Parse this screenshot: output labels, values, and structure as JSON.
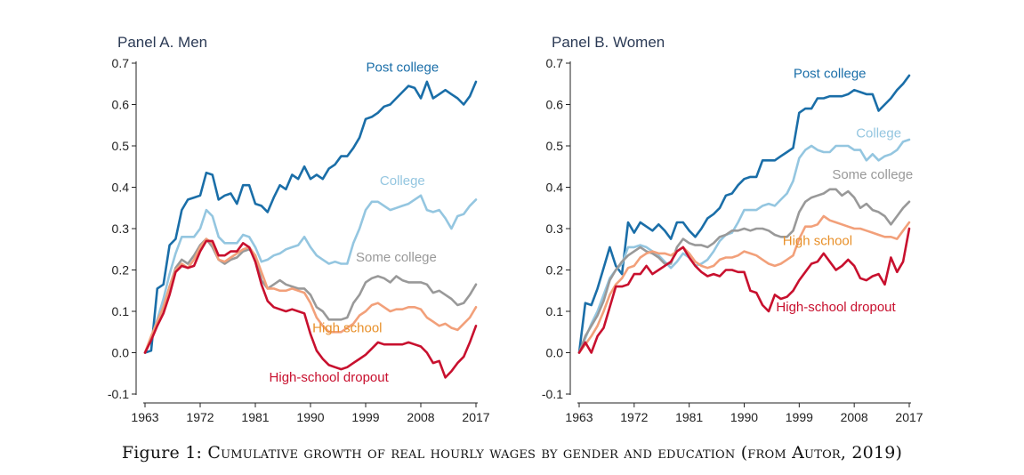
{
  "caption": {
    "label": "Figure 1:",
    "text": "Cumulative growth of real hourly wages by gender and education (from Autor, 2019)"
  },
  "colors": {
    "post_college": "#1a6ea8",
    "college": "#94c6e0",
    "some_college": "#999999",
    "high_school": "#f2a07a",
    "dropout": "#c8102e",
    "high_school_label": "#e8902a",
    "title": "#2b3a55"
  },
  "chart_data": [
    {
      "type": "line",
      "title": "Panel A. Men",
      "xlim": [
        1963,
        2017
      ],
      "ylim": [
        -0.1,
        0.7
      ],
      "xticks": [
        "1963",
        "1972",
        "1981",
        "1990",
        "1999",
        "2008",
        "2017"
      ],
      "yticks": [
        "-0.1",
        "0.0",
        "0.1",
        "0.2",
        "0.3",
        "0.4",
        "0.5",
        "0.6",
        "0.7"
      ],
      "x": [
        1963,
        1964,
        1965,
        1966,
        1967,
        1968,
        1969,
        1970,
        1971,
        1972,
        1973,
        1974,
        1975,
        1976,
        1977,
        1978,
        1979,
        1980,
        1981,
        1982,
        1983,
        1984,
        1985,
        1986,
        1987,
        1988,
        1989,
        1990,
        1991,
        1992,
        1993,
        1994,
        1995,
        1996,
        1997,
        1998,
        1999,
        2000,
        2001,
        2002,
        2003,
        2004,
        2005,
        2006,
        2007,
        2008,
        2009,
        2010,
        2011,
        2012,
        2013,
        2014,
        2015,
        2016,
        2017
      ],
      "series": [
        {
          "name": "Post college",
          "color_key": "post_college",
          "label_at": [
            2005,
            0.68
          ],
          "values": [
            0.0,
            0.005,
            0.155,
            0.165,
            0.26,
            0.275,
            0.345,
            0.37,
            0.375,
            0.38,
            0.435,
            0.43,
            0.37,
            0.38,
            0.385,
            0.36,
            0.405,
            0.405,
            0.36,
            0.355,
            0.34,
            0.375,
            0.405,
            0.395,
            0.43,
            0.42,
            0.45,
            0.42,
            0.43,
            0.42,
            0.445,
            0.455,
            0.475,
            0.475,
            0.495,
            0.52,
            0.565,
            0.57,
            0.58,
            0.595,
            0.6,
            0.615,
            0.63,
            0.645,
            0.64,
            0.615,
            0.655,
            0.615,
            0.625,
            0.635,
            0.625,
            0.615,
            0.6,
            0.62,
            0.655
          ]
        },
        {
          "name": "College",
          "color_key": "college",
          "label_at": [
            2005,
            0.405
          ],
          "values": [
            0.0,
            0.035,
            0.08,
            0.13,
            0.19,
            0.24,
            0.28,
            0.28,
            0.28,
            0.3,
            0.345,
            0.33,
            0.28,
            0.265,
            0.265,
            0.265,
            0.285,
            0.28,
            0.255,
            0.22,
            0.225,
            0.235,
            0.24,
            0.25,
            0.255,
            0.26,
            0.28,
            0.255,
            0.235,
            0.225,
            0.215,
            0.22,
            0.215,
            0.215,
            0.265,
            0.3,
            0.345,
            0.365,
            0.365,
            0.355,
            0.345,
            0.35,
            0.355,
            0.36,
            0.37,
            0.38,
            0.345,
            0.34,
            0.345,
            0.325,
            0.3,
            0.33,
            0.335,
            0.355,
            0.37
          ]
        },
        {
          "name": "Some college",
          "color_key": "some_college",
          "label_at": [
            2004,
            0.22
          ],
          "values": [
            0.0,
            0.035,
            0.07,
            0.11,
            0.16,
            0.205,
            0.225,
            0.215,
            0.235,
            0.26,
            0.275,
            0.255,
            0.225,
            0.215,
            0.225,
            0.23,
            0.245,
            0.25,
            0.235,
            0.175,
            0.155,
            0.165,
            0.175,
            0.165,
            0.16,
            0.155,
            0.155,
            0.14,
            0.11,
            0.1,
            0.08,
            0.08,
            0.08,
            0.085,
            0.12,
            0.14,
            0.17,
            0.18,
            0.185,
            0.18,
            0.17,
            0.185,
            0.175,
            0.17,
            0.17,
            0.17,
            0.165,
            0.145,
            0.15,
            0.14,
            0.13,
            0.115,
            0.12,
            0.14,
            0.165
          ]
        },
        {
          "name": "High school",
          "color_key": "high_school",
          "label_color_key": "high_school_label",
          "label_at": [
            1996,
            0.05
          ],
          "values": [
            0.0,
            0.04,
            0.075,
            0.11,
            0.16,
            0.2,
            0.215,
            0.205,
            0.225,
            0.255,
            0.275,
            0.265,
            0.225,
            0.22,
            0.23,
            0.24,
            0.25,
            0.255,
            0.235,
            0.195,
            0.155,
            0.155,
            0.15,
            0.15,
            0.155,
            0.15,
            0.145,
            0.12,
            0.085,
            0.065,
            0.05,
            0.05,
            0.05,
            0.06,
            0.07,
            0.09,
            0.1,
            0.115,
            0.12,
            0.11,
            0.1,
            0.105,
            0.105,
            0.11,
            0.11,
            0.105,
            0.085,
            0.075,
            0.065,
            0.07,
            0.06,
            0.055,
            0.07,
            0.085,
            0.11
          ]
        },
        {
          "name": "High-school dropout",
          "color_key": "dropout",
          "label_at": [
            1993,
            -0.07
          ],
          "values": [
            0.0,
            0.03,
            0.065,
            0.095,
            0.14,
            0.195,
            0.21,
            0.205,
            0.21,
            0.245,
            0.27,
            0.27,
            0.235,
            0.235,
            0.245,
            0.245,
            0.265,
            0.255,
            0.22,
            0.165,
            0.125,
            0.11,
            0.105,
            0.1,
            0.105,
            0.1,
            0.095,
            0.045,
            0.005,
            -0.015,
            -0.03,
            -0.035,
            -0.04,
            -0.035,
            -0.025,
            -0.015,
            -0.005,
            0.01,
            0.025,
            0.02,
            0.02,
            0.02,
            0.02,
            0.025,
            0.02,
            0.015,
            0.0,
            -0.025,
            -0.02,
            -0.06,
            -0.045,
            -0.025,
            -0.01,
            0.025,
            0.065
          ]
        }
      ]
    },
    {
      "type": "line",
      "title": "Panel B. Women",
      "xlim": [
        1963,
        2017
      ],
      "ylim": [
        -0.1,
        0.7
      ],
      "xticks": [
        "1963",
        "1972",
        "1981",
        "1990",
        "1999",
        "2008",
        "2017"
      ],
      "yticks": [
        "-0.1",
        "0.0",
        "0.1",
        "0.2",
        "0.3",
        "0.4",
        "0.5",
        "0.6",
        "0.7"
      ],
      "x": [
        1963,
        1964,
        1965,
        1966,
        1967,
        1968,
        1969,
        1970,
        1971,
        1972,
        1973,
        1974,
        1975,
        1976,
        1977,
        1978,
        1979,
        1980,
        1981,
        1982,
        1983,
        1984,
        1985,
        1986,
        1987,
        1988,
        1989,
        1990,
        1991,
        1992,
        1993,
        1994,
        1995,
        1996,
        1997,
        1998,
        1999,
        2000,
        2001,
        2002,
        2003,
        2004,
        2005,
        2006,
        2007,
        2008,
        2009,
        2010,
        2011,
        2012,
        2013,
        2014,
        2015,
        2016,
        2017
      ],
      "series": [
        {
          "name": "Post college",
          "color_key": "post_college",
          "label_at": [
            2004,
            0.665
          ],
          "values": [
            0.0,
            0.12,
            0.115,
            0.155,
            0.205,
            0.255,
            0.21,
            0.19,
            0.315,
            0.29,
            0.315,
            0.305,
            0.295,
            0.31,
            0.295,
            0.275,
            0.315,
            0.315,
            0.295,
            0.28,
            0.3,
            0.325,
            0.335,
            0.35,
            0.38,
            0.385,
            0.405,
            0.42,
            0.425,
            0.425,
            0.465,
            0.465,
            0.465,
            0.475,
            0.485,
            0.495,
            0.58,
            0.59,
            0.59,
            0.615,
            0.615,
            0.62,
            0.62,
            0.62,
            0.625,
            0.635,
            0.63,
            0.625,
            0.625,
            0.585,
            0.6,
            0.615,
            0.635,
            0.65,
            0.67
          ]
        },
        {
          "name": "College",
          "color_key": "college",
          "label_at": [
            2012,
            0.52
          ],
          "values": [
            0.0,
            0.035,
            0.07,
            0.1,
            0.14,
            0.18,
            0.2,
            0.215,
            0.255,
            0.255,
            0.26,
            0.255,
            0.245,
            0.235,
            0.22,
            0.205,
            0.22,
            0.24,
            0.23,
            0.21,
            0.215,
            0.225,
            0.245,
            0.27,
            0.285,
            0.29,
            0.315,
            0.345,
            0.345,
            0.345,
            0.355,
            0.36,
            0.355,
            0.37,
            0.385,
            0.415,
            0.47,
            0.49,
            0.5,
            0.49,
            0.485,
            0.485,
            0.5,
            0.5,
            0.5,
            0.49,
            0.49,
            0.465,
            0.48,
            0.465,
            0.475,
            0.48,
            0.49,
            0.51,
            0.515
          ]
        },
        {
          "name": "Some college",
          "color_key": "some_college",
          "label_at": [
            2011,
            0.42
          ],
          "values": [
            0.0,
            0.04,
            0.065,
            0.09,
            0.125,
            0.175,
            0.2,
            0.22,
            0.235,
            0.245,
            0.255,
            0.245,
            0.24,
            0.23,
            0.215,
            0.215,
            0.255,
            0.275,
            0.265,
            0.26,
            0.26,
            0.255,
            0.265,
            0.28,
            0.285,
            0.295,
            0.295,
            0.3,
            0.295,
            0.3,
            0.3,
            0.295,
            0.285,
            0.28,
            0.28,
            0.295,
            0.34,
            0.365,
            0.375,
            0.38,
            0.385,
            0.395,
            0.395,
            0.38,
            0.39,
            0.375,
            0.35,
            0.36,
            0.345,
            0.34,
            0.33,
            0.31,
            0.33,
            0.35,
            0.365
          ]
        },
        {
          "name": "High school",
          "color_key": "high_school",
          "label_color_key": "high_school_label",
          "label_at": [
            2002,
            0.26
          ],
          "values": [
            0.0,
            0.02,
            0.04,
            0.065,
            0.1,
            0.14,
            0.165,
            0.18,
            0.205,
            0.21,
            0.23,
            0.24,
            0.245,
            0.24,
            0.24,
            0.235,
            0.245,
            0.255,
            0.24,
            0.22,
            0.21,
            0.205,
            0.21,
            0.225,
            0.23,
            0.23,
            0.235,
            0.245,
            0.24,
            0.235,
            0.225,
            0.215,
            0.21,
            0.215,
            0.225,
            0.235,
            0.275,
            0.305,
            0.305,
            0.31,
            0.33,
            0.32,
            0.315,
            0.31,
            0.305,
            0.3,
            0.3,
            0.295,
            0.29,
            0.285,
            0.28,
            0.28,
            0.275,
            0.295,
            0.315
          ]
        },
        {
          "name": "High-school dropout",
          "color_key": "dropout",
          "label_at": [
            2005,
            0.1
          ],
          "values": [
            0.0,
            0.025,
            0.0,
            0.04,
            0.06,
            0.11,
            0.16,
            0.16,
            0.165,
            0.19,
            0.19,
            0.21,
            0.19,
            0.2,
            0.21,
            0.22,
            0.245,
            0.255,
            0.23,
            0.21,
            0.195,
            0.185,
            0.19,
            0.185,
            0.2,
            0.2,
            0.195,
            0.195,
            0.15,
            0.145,
            0.115,
            0.1,
            0.14,
            0.13,
            0.135,
            0.15,
            0.175,
            0.195,
            0.215,
            0.22,
            0.24,
            0.22,
            0.2,
            0.21,
            0.225,
            0.21,
            0.18,
            0.175,
            0.185,
            0.19,
            0.165,
            0.23,
            0.195,
            0.22,
            0.3
          ]
        }
      ]
    }
  ]
}
